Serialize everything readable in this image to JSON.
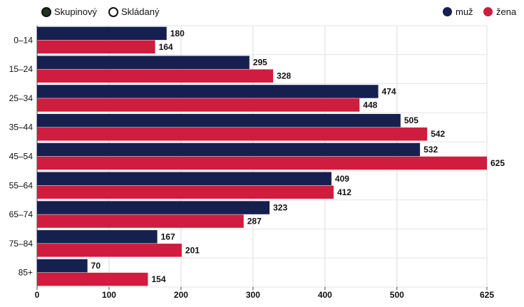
{
  "controls": {
    "options": [
      {
        "label": "Skupinový",
        "selected": true
      },
      {
        "label": "Skládaný",
        "selected": false
      }
    ]
  },
  "legend": [
    {
      "name": "muž",
      "color": "#15204f"
    },
    {
      "name": "žena",
      "color": "#d01c3e"
    }
  ],
  "chart_data": {
    "type": "bar",
    "orientation": "horizontal",
    "mode": "grouped",
    "categories": [
      "0–14",
      "15–24",
      "25–34",
      "35–44",
      "45–54",
      "55–64",
      "65–74",
      "75–84",
      "85+"
    ],
    "series": [
      {
        "name": "muž",
        "color": "#15204f",
        "values": [
          180,
          295,
          474,
          505,
          532,
          409,
          323,
          167,
          70
        ]
      },
      {
        "name": "žena",
        "color": "#d01c3e",
        "values": [
          164,
          328,
          448,
          542,
          625,
          412,
          287,
          201,
          154
        ]
      }
    ],
    "xlim": [
      0,
      625
    ],
    "xticks": [
      "0",
      "100",
      "200",
      "300",
      "400",
      "500",
      "625"
    ],
    "xtick_values": [
      0,
      100,
      200,
      300,
      400,
      500,
      625
    ],
    "grid": true,
    "legend_position": "top-right",
    "title": "",
    "xlabel": "",
    "ylabel": ""
  }
}
